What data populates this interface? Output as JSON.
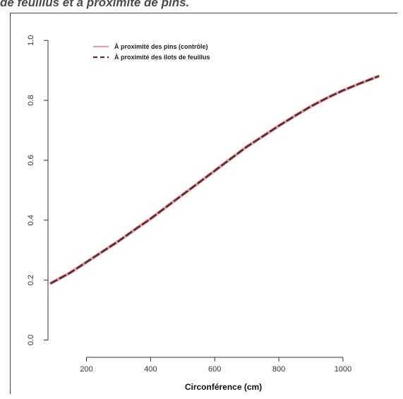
{
  "page": {
    "caption": "de feuillus et à proximité de pins."
  },
  "chart_data": {
    "type": "line",
    "title": "",
    "xlabel": "Circonférence (cm)",
    "ylabel": "",
    "xlim": [
      80,
      1130
    ],
    "ylim": [
      -0.02,
      1.05
    ],
    "x_ticks": [
      200,
      400,
      600,
      800,
      1000
    ],
    "x_tick_labels": [
      "200",
      "400",
      "600",
      "800",
      "1000"
    ],
    "y_ticks": [
      0.0,
      0.2,
      0.4,
      0.6,
      0.8,
      1.0
    ],
    "y_tick_labels": [
      "0.0",
      "0.2",
      "0.4",
      "0.6",
      "0.8",
      "1.0"
    ],
    "legend_position": "top-left",
    "grid": false,
    "series": [
      {
        "name": "À proximité des pins (contrôle)",
        "style": "solid",
        "color": "#e8a0aa",
        "x": [
          90,
          150,
          200,
          250,
          300,
          350,
          400,
          450,
          500,
          550,
          600,
          650,
          700,
          750,
          800,
          850,
          900,
          950,
          1000,
          1050,
          1110
        ],
        "y": [
          0.19,
          0.225,
          0.26,
          0.295,
          0.33,
          0.368,
          0.405,
          0.445,
          0.485,
          0.525,
          0.565,
          0.605,
          0.645,
          0.68,
          0.715,
          0.748,
          0.78,
          0.808,
          0.833,
          0.855,
          0.88
        ]
      },
      {
        "name": "À proximité des îlots de feuillus",
        "style": "dashed",
        "color": "#5a2a2a",
        "x": [
          90,
          150,
          200,
          250,
          300,
          350,
          400,
          450,
          500,
          550,
          600,
          650,
          700,
          750,
          800,
          850,
          900,
          950,
          1000,
          1050,
          1110
        ],
        "y": [
          0.19,
          0.225,
          0.26,
          0.295,
          0.33,
          0.368,
          0.405,
          0.445,
          0.485,
          0.525,
          0.565,
          0.605,
          0.645,
          0.68,
          0.715,
          0.748,
          0.78,
          0.808,
          0.833,
          0.855,
          0.88
        ]
      }
    ]
  }
}
